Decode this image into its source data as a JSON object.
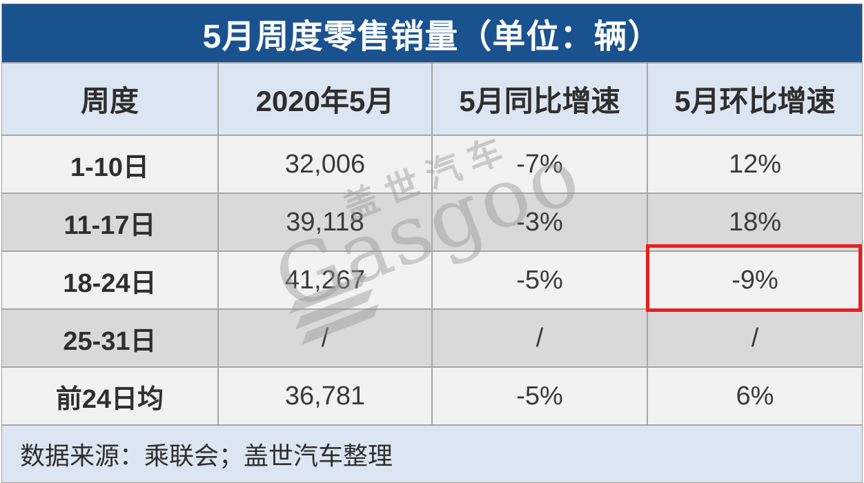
{
  "chart_data": {
    "type": "table",
    "title": "5月周度零售销量（单位：辆）",
    "columns": [
      "周度",
      "2020年5月",
      "5月同比增速",
      "5月环比增速"
    ],
    "rows": [
      {
        "label": "1-10日",
        "values": [
          "32,006",
          "-7%",
          "12%"
        ]
      },
      {
        "label": "11-17日",
        "values": [
          "39,118",
          "-3%",
          "18%"
        ]
      },
      {
        "label": "18-24日",
        "values": [
          "41,267",
          "-5%",
          "-9%"
        ],
        "highlight_col": 2
      },
      {
        "label": "25-31日",
        "values": [
          "/",
          "/",
          "/"
        ]
      },
      {
        "label": "前24日均",
        "values": [
          "36,781",
          "-5%",
          "6%"
        ]
      }
    ],
    "source_note": "数据来源：乘联会；盖世汽车整理",
    "unit": "辆",
    "highlight": {
      "row": "18-24日",
      "column": "5月环比增速",
      "value": "-9%"
    }
  },
  "watermark": {
    "line1": "盖世汽车",
    "line2": "Gasgoo"
  },
  "colors": {
    "title_bg": "#1a528f",
    "header_bg": "#dce6f2",
    "row_light": "#f2f2f2",
    "row_dark": "#d9d9d9",
    "line": "#a6a6a6",
    "highlight_border": "#e8201d",
    "title_text": "#ffffff",
    "body_text": "#3a3a3a"
  }
}
